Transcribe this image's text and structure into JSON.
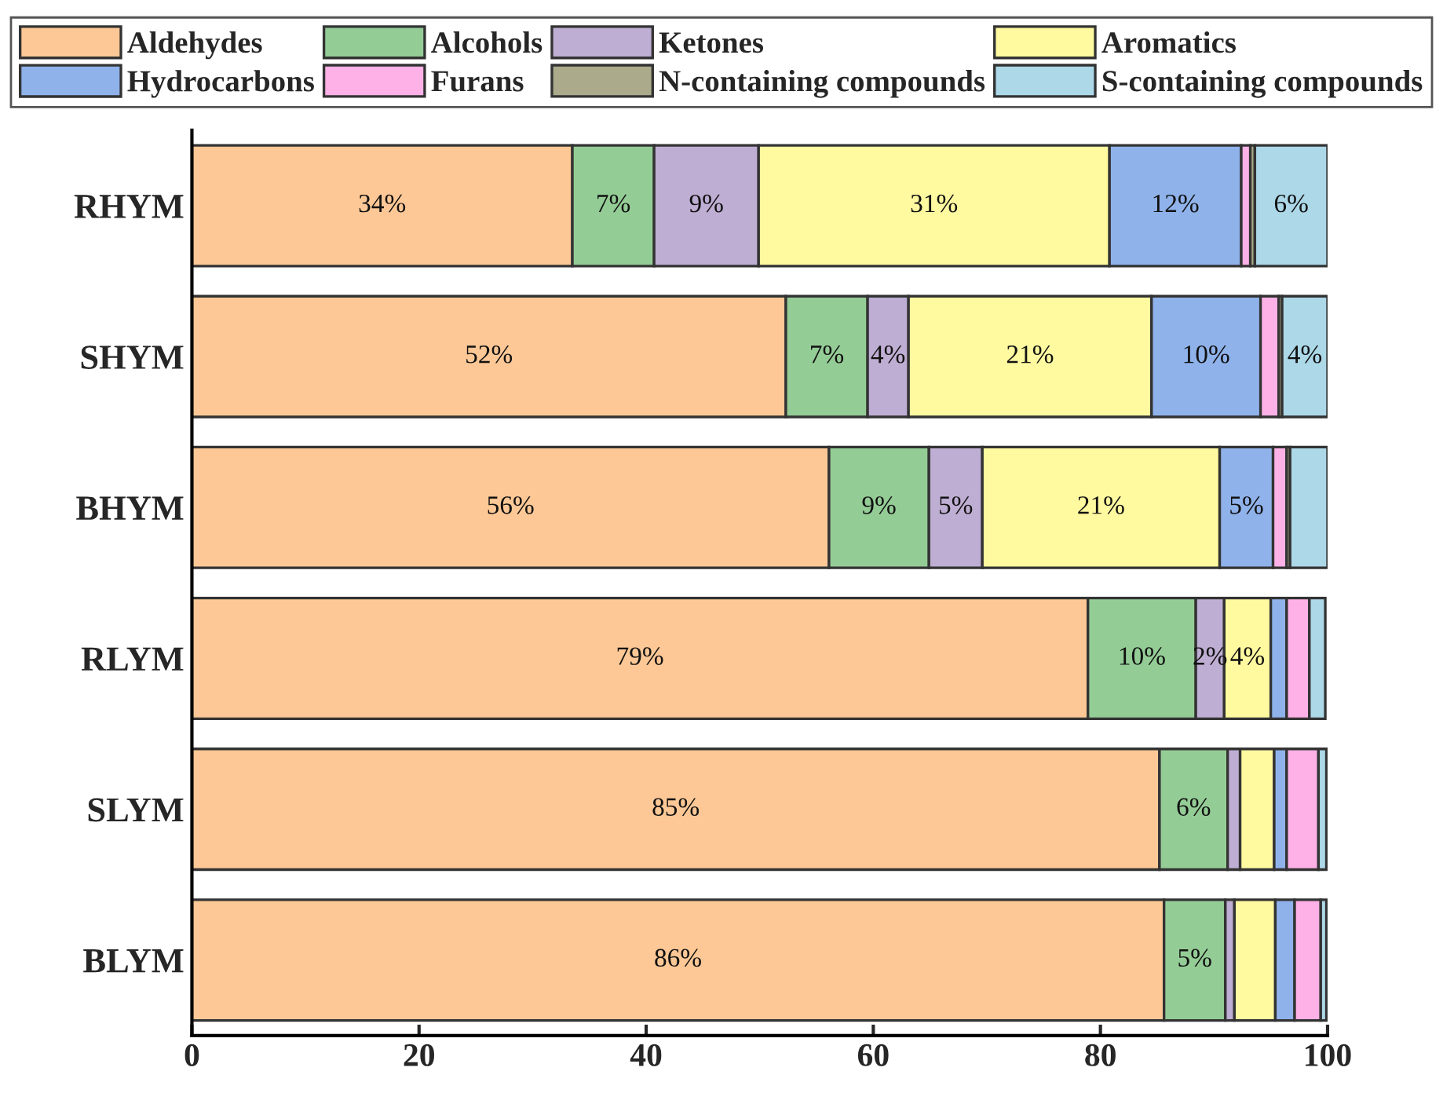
{
  "chart_data": {
    "type": "bar",
    "orientation": "horizontal",
    "stacked": true,
    "categories": [
      "RHYM",
      "SHYM",
      "BHYM",
      "RLYM",
      "SLYM",
      "BLYM"
    ],
    "xlim": [
      0,
      100
    ],
    "xticks": [
      0,
      20,
      40,
      60,
      80,
      100
    ],
    "legend": "top",
    "grid": false,
    "series": [
      {
        "name": "Aldehydes",
        "color": "#fdc896",
        "values": [
          33.5,
          52.3,
          56.1,
          78.9,
          85.2,
          85.6
        ],
        "value_labels": [
          "34%",
          "52%",
          "56%",
          "79%",
          "85%",
          "86%"
        ]
      },
      {
        "name": "Alcohols",
        "color": "#94cc96",
        "values": [
          7.2,
          7.2,
          8.8,
          9.5,
          6.0,
          5.4
        ],
        "value_labels": [
          "7%",
          "7%",
          "9%",
          "10%",
          "6%",
          "5%"
        ]
      },
      {
        "name": "Ketones",
        "color": "#bfaed3",
        "values": [
          9.2,
          3.6,
          4.7,
          2.5,
          1.1,
          0.8
        ],
        "value_labels": [
          "9%",
          "4%",
          "5%",
          "2%",
          null,
          null
        ]
      },
      {
        "name": "Aromatics",
        "color": "#fff9a0",
        "values": [
          30.9,
          21.4,
          20.9,
          4.1,
          3.0,
          3.6
        ],
        "value_labels": [
          "31%",
          "21%",
          "21%",
          "4%",
          null,
          null
        ]
      },
      {
        "name": "Hydrocarbons",
        "color": "#8fb2ea",
        "values": [
          11.6,
          9.6,
          4.7,
          1.4,
          1.1,
          1.7
        ],
        "value_labels": [
          "12%",
          "10%",
          "5%",
          null,
          null,
          null
        ]
      },
      {
        "name": "Furans",
        "color": "#fdb1e6",
        "values": [
          0.8,
          1.6,
          1.2,
          2.0,
          2.8,
          2.3
        ],
        "value_labels": [
          null,
          null,
          null,
          null,
          null,
          null
        ]
      },
      {
        "name": "N-containing compounds",
        "color": "#abab8c",
        "values": [
          0.4,
          0.3,
          0.3,
          null,
          null,
          null
        ],
        "value_labels": [
          null,
          null,
          null,
          null,
          null,
          null
        ]
      },
      {
        "name": "S-containing compounds",
        "color": "#acd8e8",
        "values": [
          6.4,
          4.0,
          3.3,
          1.4,
          0.7,
          0.5
        ],
        "value_labels": [
          "6%",
          "4%",
          null,
          null,
          null,
          null
        ]
      }
    ]
  }
}
